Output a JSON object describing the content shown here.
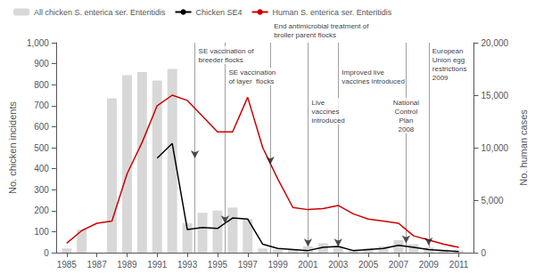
{
  "chart_data": {
    "type": "bar",
    "x": [
      1985,
      1986,
      1987,
      1988,
      1989,
      1990,
      1991,
      1992,
      1993,
      1994,
      1995,
      1996,
      1997,
      1998,
      1999,
      2000,
      2001,
      2002,
      2003,
      2004,
      2005,
      2006,
      2007,
      2008,
      2009,
      2010,
      2011
    ],
    "xlim": [
      1984.3,
      2012
    ],
    "xticks": [
      1985,
      1987,
      1989,
      1991,
      1993,
      1995,
      1997,
      1999,
      2001,
      2003,
      2005,
      2007,
      2009,
      2011
    ],
    "ylabel": "No. chicken incidents",
    "ylim": [
      0,
      1000
    ],
    "yticks": [
      0,
      100,
      200,
      300,
      400,
      500,
      600,
      700,
      800,
      900,
      {
        "value": 1000,
        "label": "1,000"
      }
    ],
    "y2label": "No. human cases",
    "y2lim": [
      0,
      20000
    ],
    "y2ticks": [
      0,
      {
        "value": 5000,
        "label": "5,000"
      },
      {
        "value": 10000,
        "label": "10,000"
      },
      {
        "value": 15000,
        "label": "15,000"
      },
      {
        "value": 20000,
        "label": "20,000"
      }
    ],
    "series": [
      {
        "name": "All chicken S. enterica ser. Enteritidis",
        "type": "bar",
        "color": "#d8d8d8",
        "values": [
          20,
          110,
          0,
          735,
          845,
          860,
          820,
          875,
          140,
          190,
          200,
          215,
          160,
          20,
          15,
          15,
          30,
          45,
          30,
          15,
          20,
          30,
          60,
          40,
          25,
          15,
          10
        ]
      },
      {
        "name": "Chicken SE4",
        "type": "line",
        "color": "#000000",
        "values": [
          null,
          null,
          null,
          null,
          null,
          null,
          450,
          520,
          110,
          120,
          115,
          165,
          160,
          40,
          20,
          15,
          10,
          25,
          30,
          10,
          15,
          20,
          35,
          25,
          15,
          10,
          5
        ]
      },
      {
        "name": "Human S. enterica ser. Enteritidis",
        "type": "line",
        "color": "#cc0000",
        "axis": "y2",
        "values": [
          900,
          2100,
          2800,
          3000,
          7500,
          10500,
          14000,
          15000,
          14500,
          13000,
          11500,
          11500,
          14800,
          10000,
          7000,
          4300,
          4100,
          4200,
          4500,
          3700,
          3200,
          3000,
          2800,
          1600,
          1200,
          800,
          500
        ]
      }
    ],
    "annotations": [
      {
        "text": "SE vaccination of\nbreeder flocks",
        "x": 1993.5,
        "y": 430
      },
      {
        "text": "SE vaccination\nof layer  flocks",
        "x": 1995.5,
        "y": 120
      },
      {
        "text": "End antimicrobial treatment of\nbroiler parent flocks",
        "x": 1998.5,
        "y": 400
      },
      {
        "text": "Live\nvaccines\nintroduced",
        "x": 2001,
        "y": 10
      },
      {
        "text": "Improved live\nvaccines introduced",
        "x": 2003,
        "y": 10
      },
      {
        "text": "National\nControl\nPlan\n2008",
        "x": 2007.5,
        "y": 25
      },
      {
        "text": "European\nUnion egg\nrestrictions\n2009",
        "x": 2009,
        "y": 15
      }
    ],
    "legend": "upper left",
    "grid": false
  }
}
